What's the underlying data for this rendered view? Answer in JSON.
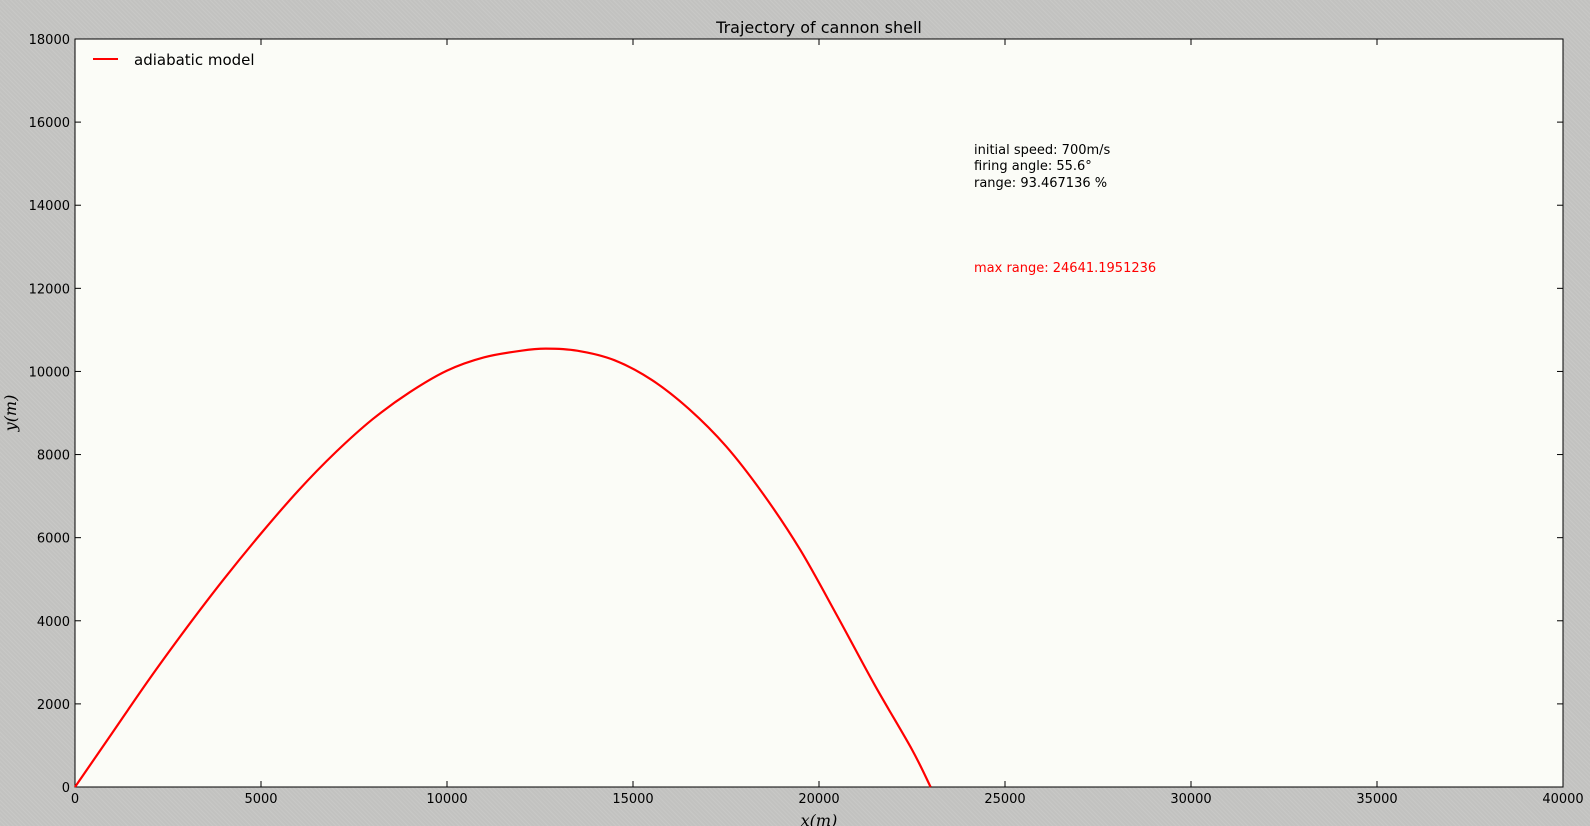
{
  "chart_data": {
    "type": "line",
    "title": "Trajectory of cannon shell",
    "xlabel": "x(m)",
    "ylabel": "y(m)",
    "xlim": [
      0,
      40000
    ],
    "ylim": [
      0,
      18000
    ],
    "xticks": [
      0,
      5000,
      10000,
      15000,
      20000,
      25000,
      30000,
      35000,
      40000
    ],
    "yticks": [
      0,
      2000,
      4000,
      6000,
      8000,
      10000,
      12000,
      14000,
      16000,
      18000
    ],
    "grid": false,
    "legend_position": "top-left",
    "series": [
      {
        "name": "adiabatic model",
        "color": "#ff0000",
        "x": [
          0,
          1000,
          2000,
          3000,
          4000,
          5000,
          6000,
          7000,
          8000,
          9000,
          10000,
          11000,
          12000,
          12650,
          13500,
          14500,
          15500,
          16500,
          17500,
          18500,
          19500,
          20500,
          21500,
          22500,
          23000
        ],
        "y": [
          0,
          1300,
          2600,
          3830,
          5000,
          6100,
          7130,
          8050,
          8850,
          9500,
          10020,
          10340,
          10500,
          10550,
          10500,
          10270,
          9800,
          9100,
          8200,
          7050,
          5700,
          4100,
          2450,
          900,
          0
        ]
      }
    ],
    "annotations": [
      {
        "lines": [
          "initial speed: 700m/s",
          "firing angle: 55.6°",
          "range: 93.467136 %"
        ],
        "color": "#000000"
      },
      {
        "lines": [
          "max range: 24641.1951236"
        ],
        "color": "#ff0000"
      }
    ]
  }
}
